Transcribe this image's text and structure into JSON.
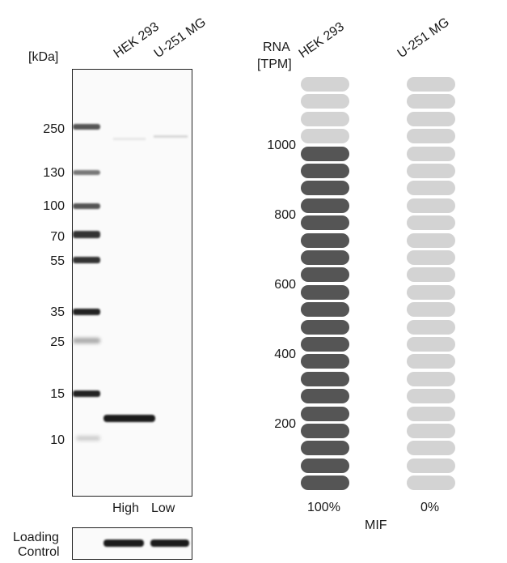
{
  "western_blot": {
    "unit_label": "[kDa]",
    "lanes": [
      "HEK 293",
      "U-251 MG"
    ],
    "markers": [
      {
        "label": "250",
        "kda": 250
      },
      {
        "label": "130",
        "kda": 130
      },
      {
        "label": "100",
        "kda": 100
      },
      {
        "label": "70",
        "kda": 70
      },
      {
        "label": "55",
        "kda": 55
      },
      {
        "label": "35",
        "kda": 35
      },
      {
        "label": "25",
        "kda": 25
      },
      {
        "label": "15",
        "kda": 15
      },
      {
        "label": "10",
        "kda": 10
      }
    ],
    "lane_levels": [
      "High",
      "Low"
    ],
    "loading_control_label_line1": "Loading",
    "loading_control_label_line2": "Control"
  },
  "rna": {
    "axis_label_line1": "RNA",
    "axis_label_line2": "[TPM]",
    "gene": "MIF",
    "cell_lines": [
      {
        "name": "HEK 293",
        "percent_label": "100%",
        "filled_fraction": 0.833
      },
      {
        "name": "U-251 MG",
        "percent_label": "0%",
        "filled_fraction": 0.0
      }
    ],
    "ticks": [
      "1000",
      "800",
      "600",
      "400",
      "200"
    ],
    "colors": {
      "filled": "#555555",
      "empty": "#d3d3d3"
    }
  }
}
